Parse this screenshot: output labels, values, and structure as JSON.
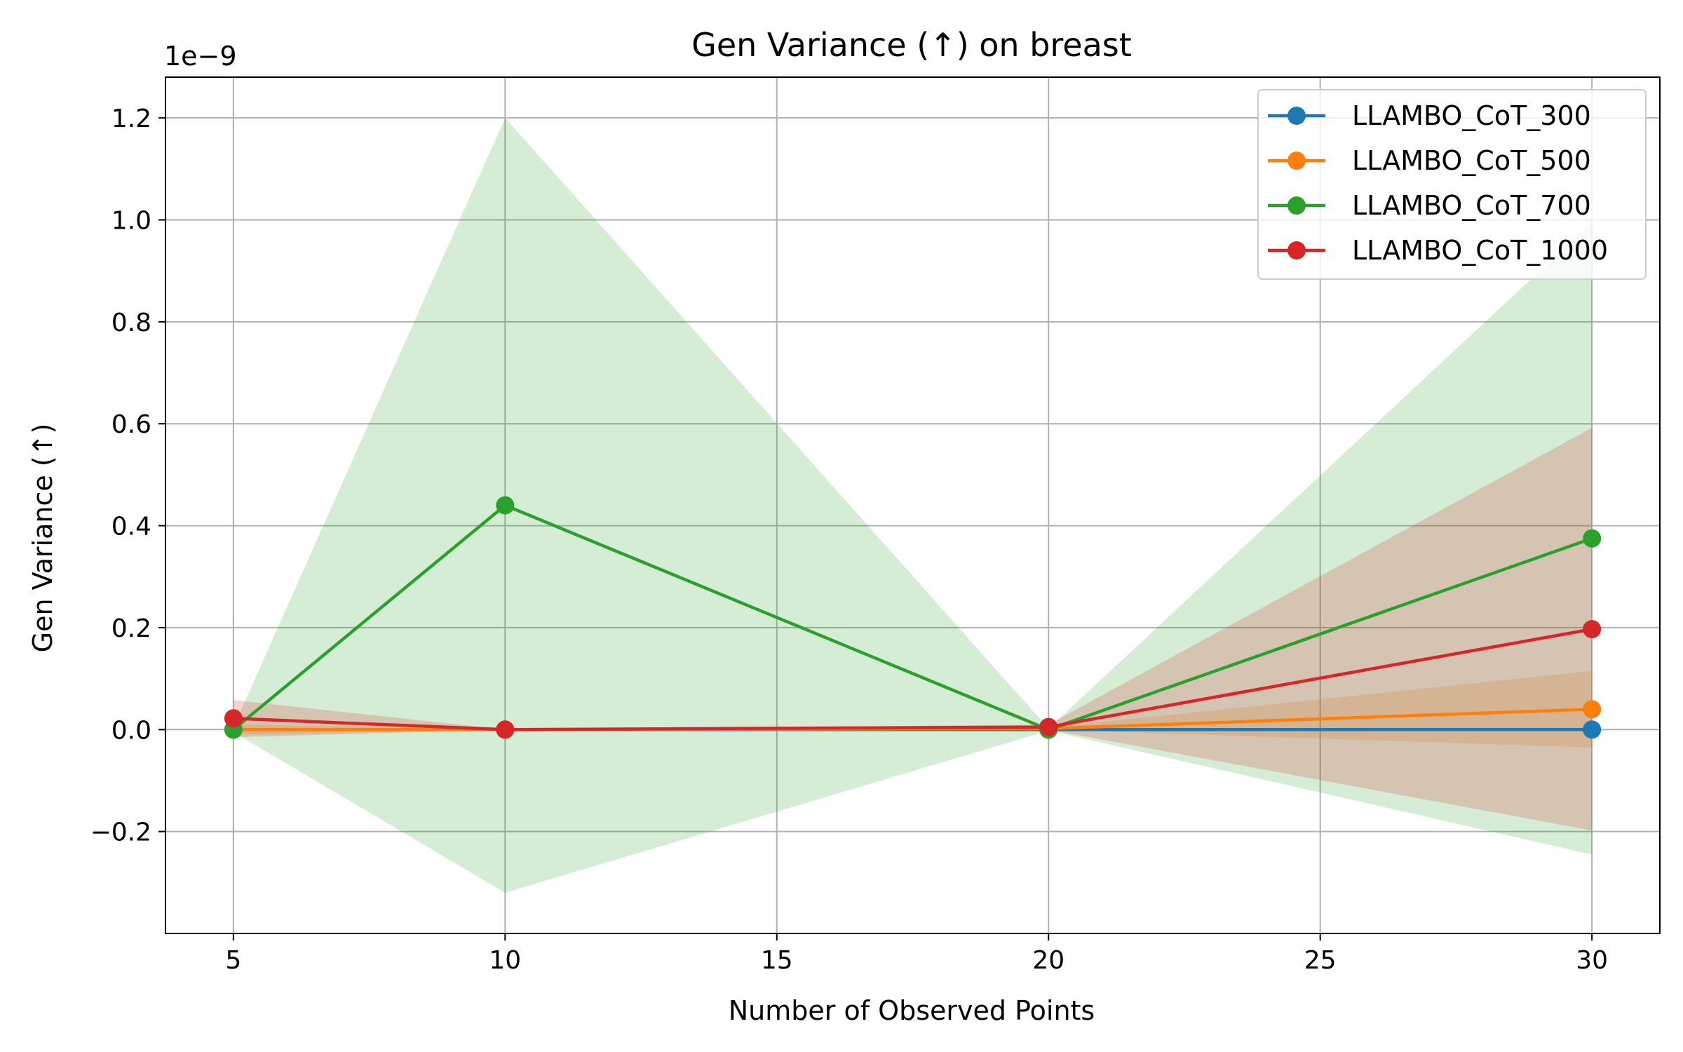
{
  "chart_data": {
    "type": "line",
    "title": "Gen Variance (↑) on breast",
    "xlabel": "Number of Observed Points",
    "ylabel": "Gen Variance (↑)",
    "y_offset_label": "1e−9",
    "x": [
      5,
      10,
      20,
      30
    ],
    "xlim": [
      3.75,
      31.25
    ],
    "ylim": [
      -0.4,
      1.28
    ],
    "x_ticks": [
      5,
      10,
      15,
      20,
      25,
      30
    ],
    "x_tick_labels": [
      "5",
      "10",
      "15",
      "20",
      "25",
      "30"
    ],
    "y_ticks": [
      -0.2,
      0.0,
      0.2,
      0.4,
      0.6,
      0.8,
      1.0,
      1.2
    ],
    "y_tick_labels": [
      "−0.2",
      "0.0",
      "0.2",
      "0.4",
      "0.6",
      "0.8",
      "1.0",
      "1.2"
    ],
    "y_scale_note": "values in units of 1e-9",
    "grid": true,
    "legend_position": "top-right",
    "series": [
      {
        "name": "LLAMBO_CoT_300",
        "color": "#1f77b4",
        "values": [
          0.0,
          0.0,
          0.0,
          0.0
        ],
        "lower": [
          0.0,
          0.0,
          0.0,
          0.0
        ],
        "upper": [
          0.0,
          0.0,
          0.0,
          0.0
        ]
      },
      {
        "name": "LLAMBO_CoT_500",
        "color": "#ff7f0e",
        "values": [
          0.0,
          0.0,
          0.002,
          0.04
        ],
        "lower": [
          -0.01,
          0.0,
          0.0,
          -0.035
        ],
        "upper": [
          0.01,
          0.0,
          0.004,
          0.115
        ]
      },
      {
        "name": "LLAMBO_CoT_700",
        "color": "#2ca02c",
        "values": [
          0.0,
          0.44,
          0.0,
          0.375
        ],
        "lower": [
          -0.005,
          -0.32,
          -0.002,
          -0.245
        ],
        "upper": [
          0.005,
          1.2,
          0.002,
          0.995
        ]
      },
      {
        "name": "LLAMBO_CoT_1000",
        "color": "#d62728",
        "values": [
          0.022,
          0.0,
          0.005,
          0.197
        ],
        "lower": [
          -0.015,
          0.0,
          0.0,
          -0.198
        ],
        "upper": [
          0.058,
          0.0,
          0.01,
          0.592
        ]
      }
    ]
  }
}
